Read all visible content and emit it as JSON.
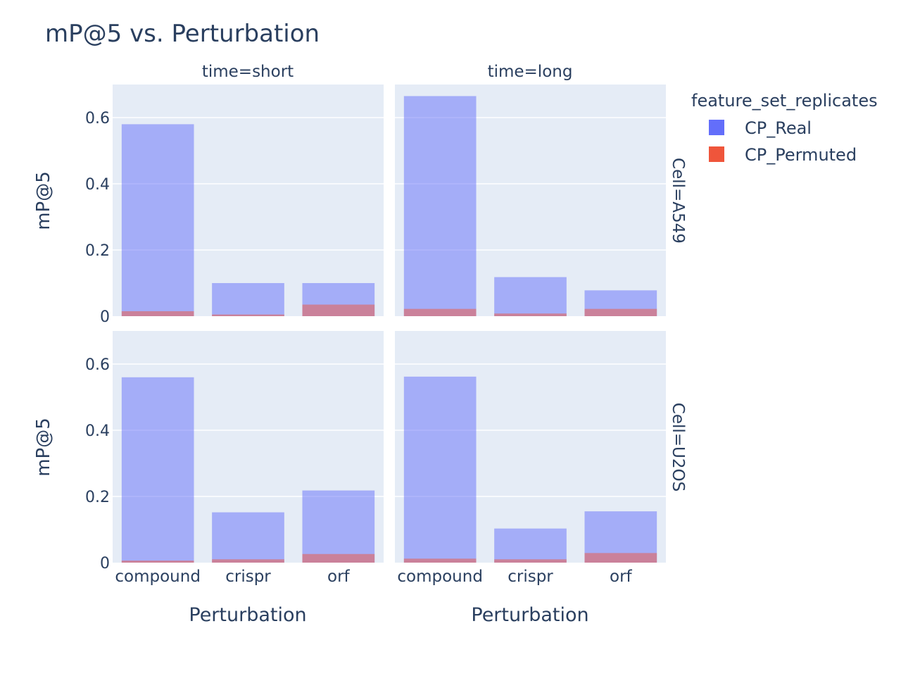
{
  "chart_data": {
    "type": "bar",
    "title": "mP@5 vs. Perturbation",
    "xlabel": "Perturbation",
    "ylabel": "mP@5",
    "ylim": [
      0,
      0.7
    ],
    "yticks": [
      0,
      0.2,
      0.4,
      0.6
    ],
    "ytick_labels": [
      "0",
      "0.2",
      "0.4",
      "0.6"
    ],
    "categories": [
      "compound",
      "crispr",
      "orf"
    ],
    "barmode": "overlay",
    "legend": {
      "title": "feature_set_replicates",
      "position": "top-right",
      "items": [
        "CP_Real",
        "CP_Permuted"
      ]
    },
    "series_colors": {
      "CP_Real": "#636efa",
      "CP_Permuted": "#ef553b"
    },
    "column_facets": [
      "time=short",
      "time=long"
    ],
    "row_facets": [
      "Cell=A549",
      "Cell=U2OS"
    ],
    "panels": [
      {
        "col": "time=short",
        "row": "Cell=A549",
        "series": [
          {
            "name": "CP_Real",
            "values": [
              0.58,
              0.1,
              0.1
            ]
          },
          {
            "name": "CP_Permuted",
            "values": [
              0.015,
              0.005,
              0.035
            ]
          }
        ]
      },
      {
        "col": "time=long",
        "row": "Cell=A549",
        "series": [
          {
            "name": "CP_Real",
            "values": [
              0.665,
              0.118,
              0.078
            ]
          },
          {
            "name": "CP_Permuted",
            "values": [
              0.022,
              0.008,
              0.022
            ]
          }
        ]
      },
      {
        "col": "time=short",
        "row": "Cell=U2OS",
        "series": [
          {
            "name": "CP_Real",
            "values": [
              0.56,
              0.152,
              0.218
            ]
          },
          {
            "name": "CP_Permuted",
            "values": [
              0.006,
              0.01,
              0.026
            ]
          }
        ]
      },
      {
        "col": "time=long",
        "row": "Cell=U2OS",
        "series": [
          {
            "name": "CP_Real",
            "values": [
              0.562,
              0.103,
              0.155
            ]
          },
          {
            "name": "CP_Permuted",
            "values": [
              0.012,
              0.01,
              0.029
            ]
          }
        ]
      }
    ]
  }
}
